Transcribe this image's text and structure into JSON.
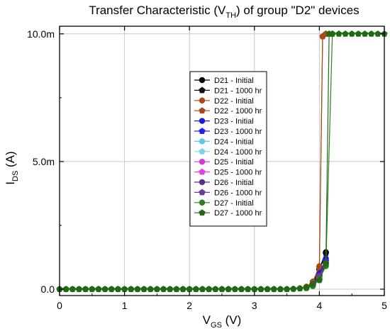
{
  "chart_data": {
    "type": "line",
    "title_parts": {
      "prefix": "Transfer Characteristic (V",
      "sub": "TH",
      "suffix": ") of group \"D2\" devices"
    },
    "xlabel_parts": {
      "main": "V",
      "sub": "GS",
      "suffix": " (V)"
    },
    "ylabel_parts": {
      "main": "I",
      "sub": "DS",
      "suffix": " (A)"
    },
    "xlim": [
      0,
      5
    ],
    "ylim": [
      -0.00025,
      0.0103
    ],
    "x_ticks": [
      0,
      1,
      2,
      3,
      4,
      5
    ],
    "x_tick_labels": [
      "0",
      "1",
      "2",
      "3",
      "4",
      "5"
    ],
    "y_ticks": [
      0,
      0.005,
      0.01
    ],
    "y_tick_labels": [
      "0.0",
      "5.0m",
      "10.0m"
    ],
    "grid": true,
    "legend_position": "center",
    "series": [
      {
        "name": "D21 - Initial",
        "color": "#000000",
        "marker": "circle",
        "x": [
          0,
          0.1,
          0.2,
          0.3,
          0.4,
          0.5,
          0.6,
          0.7,
          0.8,
          0.9,
          1,
          1.1,
          1.2,
          1.3,
          1.4,
          1.5,
          1.6,
          1.7,
          1.8,
          1.9,
          2,
          2.1,
          2.2,
          2.3,
          2.4,
          2.5,
          2.6,
          2.7,
          2.8,
          2.9,
          3,
          3.1,
          3.2,
          3.3,
          3.4,
          3.5,
          3.6,
          3.7,
          3.8,
          3.9,
          4,
          4.1
        ],
        "y": [
          0,
          0,
          0,
          0,
          0,
          0,
          0,
          0,
          0,
          0,
          0,
          0,
          0,
          0,
          0,
          0,
          0,
          0,
          0,
          0,
          0,
          0,
          0,
          0,
          0,
          0,
          0,
          0,
          0,
          0,
          0,
          0,
          0,
          0,
          0,
          0,
          1e-05,
          3e-05,
          8e-05,
          0.00025,
          0.0008,
          0.00145
        ]
      },
      {
        "name": "D21 - 1000 hr",
        "color": "#111111",
        "marker": "pentagon",
        "x": [
          3.8,
          3.9,
          4,
          4.1
        ],
        "y": [
          7e-05,
          0.0002,
          0.00075,
          0.0014
        ]
      },
      {
        "name": "D22 - Initial",
        "color": "#b1441c",
        "marker": "circle",
        "x": [
          3.7,
          3.8,
          3.9,
          4,
          4.05,
          4.1
        ],
        "y": [
          3e-05,
          0.0001,
          0.0003,
          0.0009,
          0.0099,
          0.01
        ]
      },
      {
        "name": "D22 - 1000 hr",
        "color": "#a64a1a",
        "marker": "pentagon",
        "x": [
          3.8,
          3.9,
          4,
          4.05,
          4.1
        ],
        "y": [
          8e-05,
          0.00028,
          0.00085,
          0.0099,
          0.01
        ]
      },
      {
        "name": "D23 - Initial",
        "color": "#1a1adb",
        "marker": "circle",
        "x": [
          3.8,
          3.9,
          4,
          4.1
        ],
        "y": [
          6e-05,
          0.00018,
          0.0006,
          0.0012
        ]
      },
      {
        "name": "D23 - 1000 hr",
        "color": "#2222ee",
        "marker": "pentagon",
        "x": [
          3.8,
          3.9,
          4,
          4.1
        ],
        "y": [
          5e-05,
          0.00016,
          0.00055,
          0.0011
        ]
      },
      {
        "name": "D24 - Initial",
        "color": "#5ec8e8",
        "marker": "circle",
        "x": [
          3.8,
          3.9,
          4,
          4.1
        ],
        "y": [
          4e-05,
          0.00014,
          0.0005,
          0.001
        ]
      },
      {
        "name": "D24 - 1000 hr",
        "color": "#79d6f2",
        "marker": "pentagon",
        "x": [
          3.8,
          3.9,
          4,
          4.1
        ],
        "y": [
          4e-05,
          0.00013,
          0.00045,
          0.00095
        ]
      },
      {
        "name": "D25 - Initial",
        "color": "#d438d8",
        "marker": "circle",
        "x": [
          3.8,
          3.9,
          4,
          4.1
        ],
        "y": [
          5e-05,
          0.00015,
          0.0005,
          0.001
        ]
      },
      {
        "name": "D25 - 1000 hr",
        "color": "#e040e8",
        "marker": "pentagon",
        "x": [
          3.8,
          3.9,
          4,
          4.1
        ],
        "y": [
          5e-05,
          0.00014,
          0.00048,
          0.00098
        ]
      },
      {
        "name": "D26 - Initial",
        "color": "#5a2f8e",
        "marker": "circle",
        "x": [
          3.8,
          3.9,
          4,
          4.1
        ],
        "y": [
          5e-05,
          0.00016,
          0.00052,
          0.00105
        ]
      },
      {
        "name": "D26 - 1000 hr",
        "color": "#6a3a9e",
        "marker": "pentagon",
        "x": [
          3.8,
          3.9,
          4,
          4.1
        ],
        "y": [
          5e-05,
          0.00015,
          0.0005,
          0.001
        ]
      },
      {
        "name": "D27 - Initial",
        "color": "#2e7d1e",
        "marker": "circle",
        "x": [
          3.8,
          3.9,
          4,
          4.1,
          4.2
        ],
        "y": [
          4e-05,
          0.00012,
          0.0004,
          0.0009,
          0.01
        ]
      },
      {
        "name": "D27 - 1000 hr",
        "color": "#1f6b12",
        "marker": "pentagon",
        "x": [
          0,
          0.1,
          0.2,
          0.3,
          0.4,
          0.5,
          0.6,
          0.7,
          0.8,
          0.9,
          1,
          1.1,
          1.2,
          1.3,
          1.4,
          1.5,
          1.6,
          1.7,
          1.8,
          1.9,
          2,
          2.1,
          2.2,
          2.3,
          2.4,
          2.5,
          2.6,
          2.7,
          2.8,
          2.9,
          3,
          3.1,
          3.2,
          3.3,
          3.4,
          3.5,
          3.6,
          3.7,
          3.8,
          3.9,
          4,
          4.1,
          4.15,
          4.2,
          4.3,
          4.4,
          4.5,
          4.6,
          4.7,
          4.8,
          4.9,
          5
        ],
        "y": [
          0,
          0,
          0,
          0,
          0,
          0,
          0,
          0,
          0,
          0,
          0,
          0,
          0,
          0,
          0,
          0,
          0,
          0,
          0,
          0,
          0,
          0,
          0,
          0,
          0,
          0,
          0,
          0,
          0,
          0,
          0,
          0,
          0,
          0,
          0,
          0,
          1e-05,
          3e-05,
          7e-05,
          0.0002,
          0.00035,
          0.001,
          0.01,
          0.01,
          0.01,
          0.01,
          0.01,
          0.01,
          0.01,
          0.01,
          0.01,
          0.01
        ]
      }
    ]
  }
}
